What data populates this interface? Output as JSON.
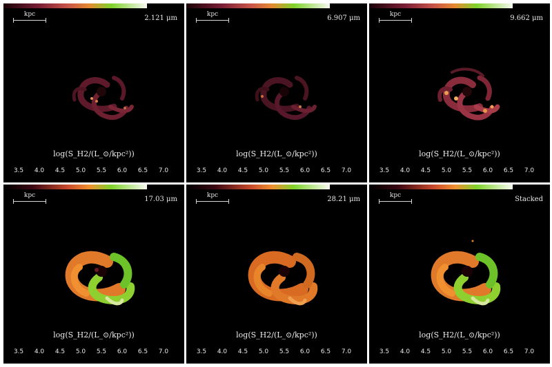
{
  "scale_label": "kpc",
  "colorbar": {
    "label": "log(S_H2/(L_⊙/kpc²))",
    "ticks": [
      "3.5",
      "4.0",
      "4.5",
      "5.0",
      "5.5",
      "6.0",
      "6.5",
      "7.0"
    ]
  },
  "panels": [
    {
      "label": "2.121 μm",
      "style": "clumpy-faint"
    },
    {
      "label": "6.907 μm",
      "style": "clumpy-faint"
    },
    {
      "label": "9.662 μm",
      "style": "clumpy-bright"
    },
    {
      "label": "17.03 μm",
      "style": "smooth-green"
    },
    {
      "label": "28.21 μm",
      "style": "smooth-orange"
    },
    {
      "label": "Stacked",
      "style": "smooth-green"
    }
  ],
  "colors": {
    "cmap_low": "#2a0410",
    "cmap_mid1": "#a83a50",
    "cmap_mid2": "#e08a30",
    "cmap_mid3": "#6ad02a",
    "cmap_high": "#f4f8f0"
  }
}
